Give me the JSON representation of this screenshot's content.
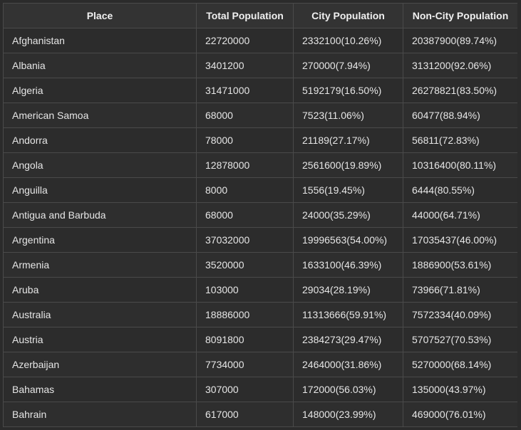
{
  "table": {
    "headers": [
      "Place",
      "Total Population",
      "City Population",
      "Non-City Population"
    ],
    "rows": [
      [
        "Afghanistan",
        "22720000",
        "2332100(10.26%)",
        "20387900(89.74%)"
      ],
      [
        "Albania",
        "3401200",
        "270000(7.94%)",
        "3131200(92.06%)"
      ],
      [
        "Algeria",
        "31471000",
        "5192179(16.50%)",
        "26278821(83.50%)"
      ],
      [
        "American Samoa",
        "68000",
        "7523(11.06%)",
        "60477(88.94%)"
      ],
      [
        "Andorra",
        "78000",
        "21189(27.17%)",
        "56811(72.83%)"
      ],
      [
        "Angola",
        "12878000",
        "2561600(19.89%)",
        "10316400(80.11%)"
      ],
      [
        "Anguilla",
        "8000",
        "1556(19.45%)",
        "6444(80.55%)"
      ],
      [
        "Antigua and Barbuda",
        "68000",
        "24000(35.29%)",
        "44000(64.71%)"
      ],
      [
        "Argentina",
        "37032000",
        "19996563(54.00%)",
        "17035437(46.00%)"
      ],
      [
        "Armenia",
        "3520000",
        "1633100(46.39%)",
        "1886900(53.61%)"
      ],
      [
        "Aruba",
        "103000",
        "29034(28.19%)",
        "73966(71.81%)"
      ],
      [
        "Australia",
        "18886000",
        "11313666(59.91%)",
        "7572334(40.09%)"
      ],
      [
        "Austria",
        "8091800",
        "2384273(29.47%)",
        "5707527(70.53%)"
      ],
      [
        "Azerbaijan",
        "7734000",
        "2464000(31.86%)",
        "5270000(68.14%)"
      ],
      [
        "Bahamas",
        "307000",
        "172000(56.03%)",
        "135000(43.97%)"
      ],
      [
        "Bahrain",
        "617000",
        "148000(23.99%)",
        "469000(76.01%)"
      ]
    ]
  }
}
